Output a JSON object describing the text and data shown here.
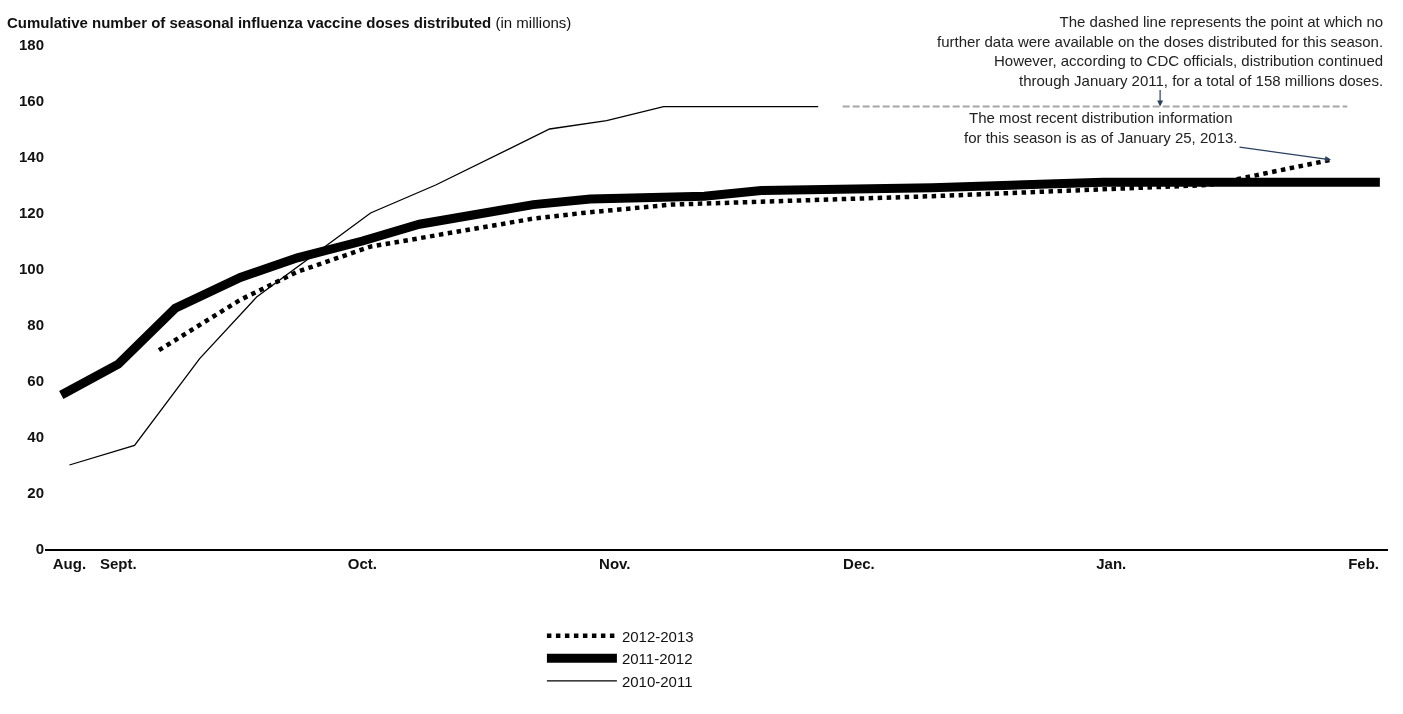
{
  "chart_data": {
    "type": "line",
    "title": "Cumulative number of seasonal influenza vaccine doses distributed",
    "subtitle": "(in millions)",
    "xlim": [
      "2012-08-25",
      "2013-02-06"
    ],
    "xticks": [
      {
        "value": "2012-08-28",
        "label": "Aug."
      },
      {
        "value": "2012-09-03",
        "label": "Sept."
      },
      {
        "value": "2012-10-03",
        "label": "Oct."
      },
      {
        "value": "2012-11-03",
        "label": "Nov."
      },
      {
        "value": "2012-12-03",
        "label": "Dec."
      },
      {
        "value": "2013-01-03",
        "label": "Jan."
      },
      {
        "value": "2013-02-03",
        "label": "Feb."
      }
    ],
    "ylim": [
      0,
      180
    ],
    "yticks": [
      0,
      20,
      40,
      60,
      80,
      100,
      120,
      140,
      160,
      180
    ],
    "legend": "bottom",
    "marker": "none",
    "series": [
      {
        "name": "2012-2013",
        "color": "#000000",
        "line_style": "dotted",
        "x": [
          "2012-09-08",
          "2012-09-18",
          "2012-09-25",
          "2012-10-04",
          "2012-10-18",
          "2012-10-24",
          "2012-10-30",
          "2012-11-10",
          "2012-12-12",
          "2013-01-15",
          "2013-01-30"
        ],
        "values": [
          71,
          89,
          99,
          108,
          115,
          118,
          120,
          123,
          126,
          130,
          139
        ]
      },
      {
        "name": "2011-2012",
        "color": "#000000",
        "line_style": "solid",
        "x": [
          "2012-08-27",
          "2012-09-03",
          "2012-09-10",
          "2012-09-18",
          "2012-09-25",
          "2012-10-03",
          "2012-10-10",
          "2012-10-24",
          "2012-10-31",
          "2012-11-14",
          "2012-11-21",
          "2012-12-12",
          "2013-01-02",
          "2013-01-30",
          "2013-02-05"
        ],
        "values": [
          55,
          66,
          86,
          97,
          104,
          110,
          116,
          123,
          125,
          126,
          128,
          129,
          131,
          131,
          131
        ]
      },
      {
        "name": "2010-2011",
        "color": "#000000",
        "line_style": "solid",
        "x": [
          "2012-08-28",
          "2012-09-05",
          "2012-09-13",
          "2012-09-20",
          "2012-10-04",
          "2012-10-12",
          "2012-10-26",
          "2012-11-02",
          "2012-11-09",
          "2012-11-28"
        ],
        "values": [
          30,
          37,
          68,
          90,
          120,
          130,
          150,
          153,
          158,
          158
        ]
      },
      {
        "color": "#a6a6a6",
        "line_style": "dashed",
        "x": [
          "2012-12-01",
          "2013-02-01"
        ],
        "values": [
          158,
          158
        ]
      }
    ],
    "annotations": [
      {
        "text": "The dashed line represents the point at which no\nfurther data were available on the doses distributed for this season.\nHowever, according to CDC officials, distribution continued\nthrough January 2011, for a total of 158 millions doses.",
        "x": "2013-01-09",
        "y": 158
      },
      {
        "text": "The most recent distribution information\nfor this season is as of January 25, 2013.",
        "x": "2013-01-30",
        "y": 139
      }
    ]
  }
}
